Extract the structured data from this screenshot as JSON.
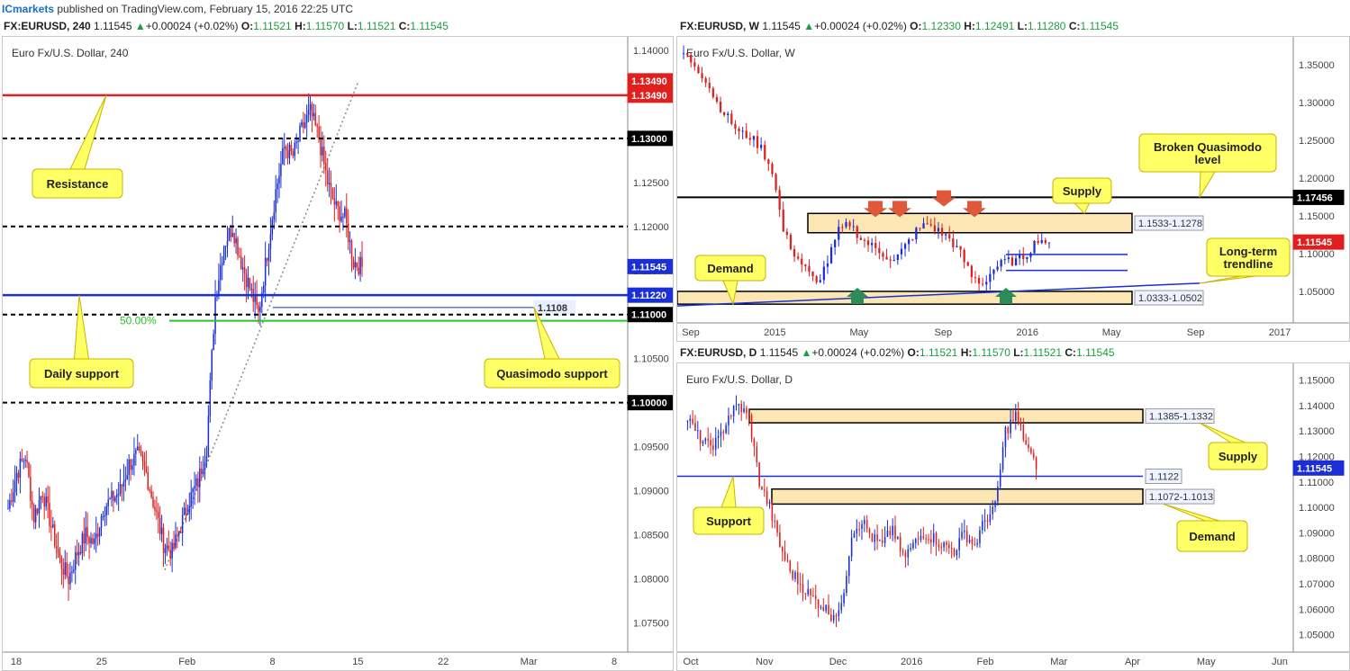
{
  "top": {
    "brand": "ICmarkets",
    "text": " published on TradingView.com, February 15, 2016 22:25 UTC"
  },
  "colors": {
    "bull": "#1a2fd6",
    "bear": "#e01f1f",
    "zone_fill": "#fbe6b4",
    "callout": "#ffff66",
    "support_line": "#1a2fd6",
    "resistance_line": "#e01f1f",
    "fib": "#27c427"
  },
  "panels": [
    {
      "id": "h4",
      "header": {
        "symbol": "FX:EURUSD, 240",
        "price": "1.11545",
        "change": "+0.00024 (+0.02%)",
        "O": "1.11521",
        "H": "1.11570",
        "L": "1.11521",
        "C": "1.11545"
      },
      "chart_data": {
        "type": "candlestick",
        "title": "Euro Fx/U.S. Dollar, 240",
        "ylim": [
          1.0725,
          1.1405
        ],
        "yticks": [
          "1.14000",
          "1.13500",
          "1.13000",
          "1.12500",
          "1.12000",
          "1.11500",
          "1.11000",
          "1.10500",
          "1.10000",
          "1.09500",
          "1.09000",
          "1.08500",
          "1.08000",
          "1.07500"
        ],
        "xlabels": [
          "18",
          "25",
          "Feb",
          "8",
          "15",
          "22",
          "Mar",
          "8"
        ],
        "levels": [
          {
            "name": "Resistance",
            "value": 1.1349,
            "style": "solid-red",
            "tag": "1.13490"
          },
          {
            "name": "1.13000",
            "value": 1.13,
            "style": "dashed-black",
            "tag": "1.13000"
          },
          {
            "name": "1.12000",
            "value": 1.12,
            "style": "dashed-black"
          },
          {
            "name": "Daily support",
            "value": 1.1122,
            "style": "solid-blue",
            "tag": "1.11220"
          },
          {
            "name": "Quasimodo support",
            "value": 1.1108,
            "style": "thin-blue",
            "tag": "1.1108"
          },
          {
            "name": "1.11000",
            "value": 1.11,
            "style": "dashed-black",
            "tag": "1.11000"
          },
          {
            "name": "50.00%",
            "value": 1.1093,
            "style": "solid-green"
          },
          {
            "name": "1.10000",
            "value": 1.1,
            "style": "dashed-black",
            "tag": "1.10000"
          }
        ],
        "last_price": "1.11545",
        "close_path": [
          1.088,
          1.092,
          1.094,
          1.087,
          1.09,
          1.086,
          1.082,
          1.08,
          1.083,
          1.085,
          1.084,
          1.088,
          1.089,
          1.09,
          1.093,
          1.094,
          1.092,
          1.088,
          1.084,
          1.083,
          1.086,
          1.089,
          1.091,
          1.095,
          1.112,
          1.118,
          1.12,
          1.116,
          1.113,
          1.11,
          1.117,
          1.124,
          1.129,
          1.128,
          1.131,
          1.133,
          1.13,
          1.125,
          1.122,
          1.121,
          1.116,
          1.1154
        ],
        "annotations": [
          "Resistance",
          "Daily support",
          "Quasimodo support"
        ]
      }
    },
    {
      "id": "weekly",
      "header": {
        "symbol": "FX:EURUSD, W",
        "price": "1.11545",
        "change": "+0.00024 (+0.02%)",
        "O": "1.12330",
        "H": "1.12491",
        "L": "1.11280",
        "C": "1.11545"
      },
      "chart_data": {
        "type": "candlestick",
        "title": "Euro Fx/U.S. Dollar, W",
        "ylim": [
          1.018,
          1.375
        ],
        "yticks": [
          "1.35000",
          "1.30000",
          "1.25000",
          "1.20000",
          "1.15000",
          "1.10000",
          "1.05000"
        ],
        "xlabels": [
          "Sep",
          "2015",
          "May",
          "Sep",
          "2016",
          "May",
          "Sep",
          "2017"
        ],
        "zones": [
          {
            "name": "Supply",
            "range": [
              1.1278,
              1.1533
            ],
            "tag": "1.1533-1.1278"
          },
          {
            "name": "Demand",
            "range": [
              1.0333,
              1.0502
            ],
            "tag": "1.0333-1.0502"
          }
        ],
        "levels": [
          {
            "name": "Broken Quasimodo level",
            "value": 1.17456,
            "tag": "1.17456"
          }
        ],
        "trendline": {
          "name": "Long-term trendline"
        },
        "last_price": "1.11545",
        "annotations": [
          "Supply",
          "Broken Quasimodo level",
          "Demand",
          "Long-term trendline"
        ]
      }
    },
    {
      "id": "daily",
      "header": {
        "symbol": "FX:EURUSD, D",
        "price": "1.11545",
        "change": "+0.00024 (+0.02%)",
        "O": "1.11521",
        "H": "1.11570",
        "L": "1.11521",
        "C": "1.11545"
      },
      "chart_data": {
        "type": "candlestick",
        "title": "Euro Fx/U.S. Dollar, D",
        "ylim": [
          1.046,
          1.153
        ],
        "yticks": [
          "1.15000",
          "1.14000",
          "1.13000",
          "1.12000",
          "1.11000",
          "1.10000",
          "1.09000",
          "1.08000",
          "1.07000",
          "1.06000",
          "1.05000"
        ],
        "xlabels": [
          "Oct",
          "Nov",
          "Dec",
          "2016",
          "Feb",
          "Mar",
          "Apr",
          "May",
          "Jun"
        ],
        "zones": [
          {
            "name": "Supply",
            "range": [
              1.1332,
              1.1385
            ],
            "tag": "1.1385-1.1332"
          },
          {
            "name": "Demand",
            "range": [
              1.1013,
              1.1072
            ],
            "tag": "1.1072-1.1013"
          }
        ],
        "levels": [
          {
            "name": "Support",
            "value": 1.1122,
            "tag": "1.1122"
          }
        ],
        "last_price": "1.11545",
        "annotations": [
          "Supply",
          "Support",
          "Demand"
        ]
      }
    }
  ]
}
